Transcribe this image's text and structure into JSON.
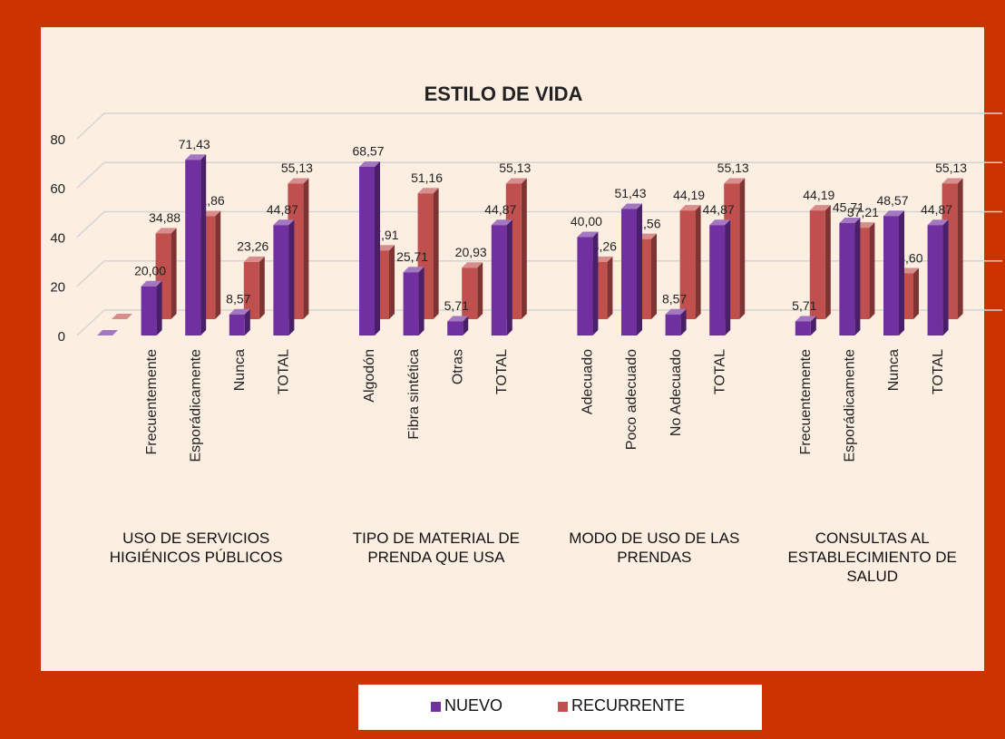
{
  "chart_data": {
    "type": "bar3d",
    "title": "ESTILO DE VIDA",
    "groups": [
      {
        "label": "USO DE SERVICIOS HIGIÉNICOS PÚBLICOS",
        "categories": [
          null,
          "Frecuentemente",
          "Esporádicamente",
          "Nunca",
          "TOTAL"
        ]
      },
      {
        "label": "TIPO DE MATERIAL DE PRENDA QUE USA",
        "categories": [
          "Algodón",
          "Fibra sintética",
          "Otras",
          "TOTAL"
        ]
      },
      {
        "label": "MODO DE USO DE LAS PRENDAS",
        "categories": [
          "Adecuado",
          "Poco adecuado",
          "No Adecuado",
          "TOTAL"
        ]
      },
      {
        "label": "CONSULTAS AL ESTABLECIMIENTO DE SALUD",
        "categories": [
          "Frecuentemente",
          "Esporádicamente",
          "Nunca",
          "TOTAL"
        ]
      }
    ],
    "series": [
      {
        "name": "NUEVO",
        "color": "#7030a0",
        "values": [
          0,
          20,
          71.43,
          8.57,
          44.87,
          68.57,
          25.71,
          5.71,
          44.87,
          40,
          51.43,
          8.57,
          44.87,
          5.71,
          45.71,
          48.57,
          44.87
        ],
        "value_labels": [
          null,
          "20,00",
          "71,43",
          "8,57",
          "44,87",
          "68,57",
          "25,71",
          "5,71",
          "44,87",
          "40,00",
          "51,43",
          "8,57",
          "44,87",
          "5,71",
          "45,71",
          "48,57",
          "44,87"
        ]
      },
      {
        "name": "RECURRENTE",
        "color": "#c0504d",
        "values": [
          0,
          34.88,
          41.86,
          23.26,
          55.13,
          27.91,
          51.16,
          20.93,
          55.13,
          23.26,
          32.56,
          44.19,
          55.13,
          44.19,
          37.21,
          18.6,
          55.13
        ],
        "value_labels": [
          null,
          "34,88",
          "41,86",
          "23,26",
          "55,13",
          "27,91",
          "51,16",
          "20,93",
          "55,13",
          "23,26",
          "32,56",
          "44,19",
          "55,13",
          "44,19",
          "37,21",
          "18,60",
          "55,13"
        ]
      }
    ],
    "ylim": [
      0,
      80
    ],
    "yticks": [
      0,
      20,
      40,
      60,
      80
    ],
    "grid": true,
    "legend": "bottom"
  }
}
